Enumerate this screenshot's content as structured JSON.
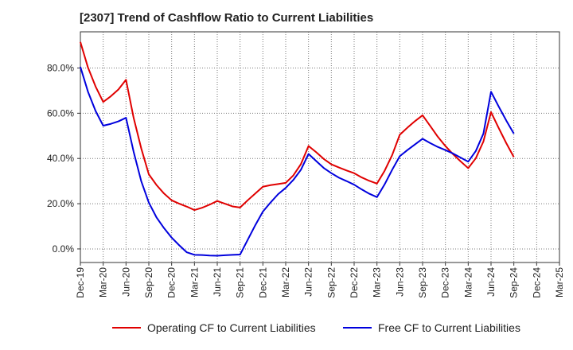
{
  "chart_data": {
    "type": "line",
    "title": "[2307]  Trend of Cashflow Ratio to Current Liabilities",
    "xlabel": "",
    "ylabel": "",
    "ylim": [
      -6,
      96
    ],
    "y_ticks": [
      "0.0%",
      "20.0%",
      "40.0%",
      "60.0%",
      "80.0%"
    ],
    "y_tick_values": [
      0,
      20,
      40,
      60,
      80
    ],
    "x_tick_labels": [
      "Dec-19",
      "Mar-20",
      "Jun-20",
      "Sep-20",
      "Dec-20",
      "Mar-21",
      "Jun-21",
      "Sep-21",
      "Dec-21",
      "Mar-22",
      "Jun-22",
      "Sep-22",
      "Dec-22",
      "Mar-23",
      "Jun-23",
      "Sep-23",
      "Dec-23",
      "Mar-24",
      "Jun-24",
      "Sep-24",
      "Dec-24",
      "Mar-25"
    ],
    "x": [
      "Dec-19",
      "Jan-20",
      "Feb-20",
      "Mar-20",
      "Apr-20",
      "May-20",
      "Jun-20",
      "Jul-20",
      "Aug-20",
      "Sep-20",
      "Oct-20",
      "Nov-20",
      "Dec-20",
      "Jan-21",
      "Feb-21",
      "Mar-21",
      "Apr-21",
      "May-21",
      "Jun-21",
      "Jul-21",
      "Aug-21",
      "Sep-21",
      "Oct-21",
      "Nov-21",
      "Dec-21",
      "Jan-22",
      "Feb-22",
      "Mar-22",
      "Apr-22",
      "May-22",
      "Jun-22",
      "Jul-22",
      "Aug-22",
      "Sep-22",
      "Oct-22",
      "Nov-22",
      "Dec-22",
      "Jan-23",
      "Feb-23",
      "Mar-23",
      "Apr-23",
      "May-23",
      "Jun-23",
      "Jul-23",
      "Aug-23",
      "Sep-23",
      "Oct-23",
      "Nov-23",
      "Dec-23",
      "Jan-24",
      "Feb-24",
      "Mar-24",
      "Apr-24",
      "May-24",
      "Jun-24",
      "Jul-24",
      "Aug-24",
      "Sep-24"
    ],
    "grid": true,
    "legend_position": "bottom",
    "series": [
      {
        "name": "Operating CF to Current Liabilities",
        "color": "#e00000",
        "values": [
          91.5,
          80.2,
          71.8,
          65.0,
          67.5,
          70.5,
          74.8,
          58.0,
          44.5,
          33.0,
          28.3,
          24.5,
          21.5,
          20.0,
          18.7,
          17.2,
          18.2,
          19.6,
          21.2,
          20.0,
          18.8,
          18.3,
          21.5,
          24.5,
          27.5,
          28.2,
          28.7,
          29.2,
          32.5,
          37.5,
          45.5,
          42.8,
          39.8,
          37.4,
          36.0,
          34.7,
          33.5,
          31.6,
          30.1,
          28.9,
          34.5,
          41.5,
          50.5,
          53.6,
          56.5,
          59.1,
          54.4,
          49.6,
          45.5,
          41.9,
          38.7,
          35.7,
          40.1,
          47.5,
          60.5,
          53.5,
          46.8,
          40.6
        ]
      },
      {
        "name": "Free CF to Current Liabilities",
        "color": "#0000dd",
        "values": [
          80.5,
          69.5,
          61.0,
          54.5,
          55.3,
          56.4,
          58.0,
          43.0,
          30.0,
          20.5,
          14.0,
          9.2,
          5.0,
          1.6,
          -1.5,
          -2.6,
          -2.7,
          -2.9,
          -3.0,
          -2.8,
          -2.6,
          -2.5,
          4.0,
          10.5,
          16.5,
          20.5,
          24.2,
          27.0,
          30.5,
          35.0,
          42.0,
          38.9,
          35.8,
          33.5,
          31.5,
          30.0,
          28.4,
          26.3,
          24.4,
          22.9,
          28.5,
          35.0,
          41.0,
          43.7,
          46.2,
          48.7,
          46.8,
          45.1,
          43.7,
          42.2,
          40.4,
          38.6,
          43.3,
          51.0,
          69.5,
          63.0,
          56.8,
          51.0
        ]
      }
    ]
  }
}
